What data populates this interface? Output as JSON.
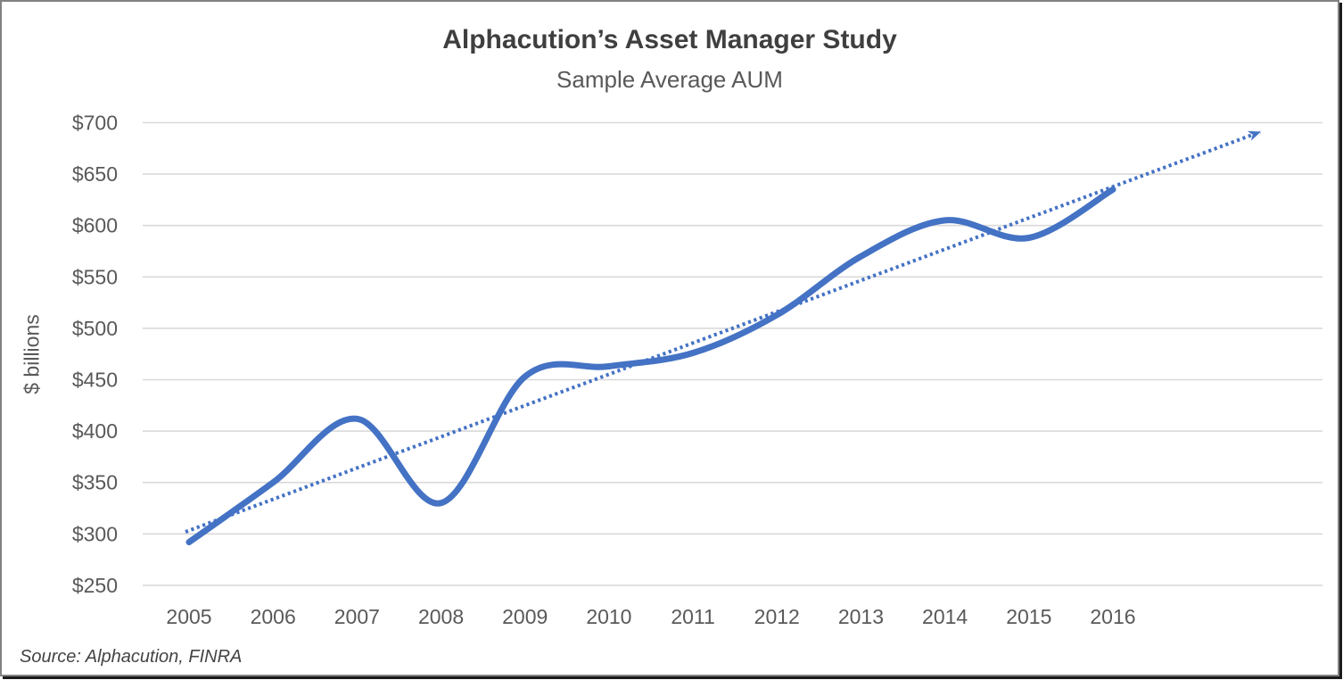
{
  "header": {
    "title": "Alphacution’s Asset Manager Study",
    "subtitle": "Sample Average AUM"
  },
  "footer": {
    "source": "Source: Alphacution, FINRA"
  },
  "colors": {
    "line_blue": "#4472C4",
    "gridline_gray": "#D9D9D9",
    "title_gray": "#3F3F3F",
    "label_gray": "#595959"
  },
  "chart_data": {
    "type": "line",
    "title": "Alphacution’s Asset Manager Study",
    "subtitle": "Sample Average AUM",
    "xlabel": "",
    "ylabel": "$ billions",
    "ylim": [
      250,
      700
    ],
    "ytick_step": 50,
    "grid": "horizontal gridlines only",
    "legend": "none",
    "x": [
      2005,
      2006,
      2007,
      2008,
      2009,
      2010,
      2011,
      2012,
      2013,
      2014,
      2015,
      2016
    ],
    "x_tick_labels": [
      "2005",
      "2006",
      "2007",
      "2008",
      "2009",
      "2010",
      "2011",
      "2012",
      "2013",
      "2014",
      "2015",
      "2016"
    ],
    "y_tick_labels": [
      "$250",
      "$300",
      "$350",
      "$400",
      "$450",
      "$500",
      "$550",
      "$600",
      "$650",
      "$700"
    ],
    "series": [
      {
        "name": "Sample Average AUM (smoothed line, $ billions)",
        "style": "solid-smooth",
        "color": "#4472C4",
        "values": [
          292,
          350,
          412,
          330,
          453,
          463,
          476,
          513,
          570,
          605,
          588,
          635
        ]
      },
      {
        "name": "Linear trend (dotted, arrow extending past 2016)",
        "style": "dotted-arrow",
        "color": "#4472C4",
        "start_year": 2005,
        "start_value": 302,
        "end_year": 2017.9,
        "end_value": 691
      }
    ]
  }
}
